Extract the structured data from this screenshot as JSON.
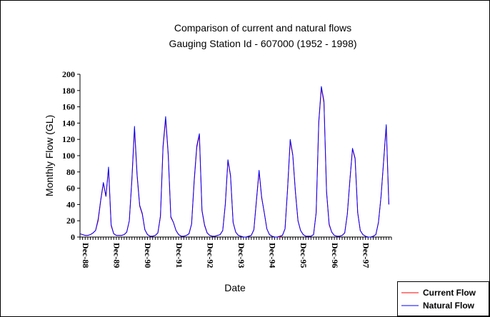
{
  "chart_data": {
    "type": "line",
    "title": "Comparison of current and natural flows",
    "subtitle": "Gauging Station Id - 607000 (1952 - 1998)",
    "xlabel": "Date",
    "ylabel": "Monthly Flow (GL)",
    "ylim": [
      0,
      200
    ],
    "yticks": [
      "0",
      "20",
      "40",
      "60",
      "80",
      "100",
      "120",
      "140",
      "160",
      "180",
      "200"
    ],
    "xlim": [
      "Dec-88",
      "Dec-98"
    ],
    "xticks": [
      "Dec-88",
      "Dec-89",
      "Dec-90",
      "Dec-91",
      "Dec-92",
      "Dec-93",
      "Dec-94",
      "Dec-95",
      "Dec-96",
      "Dec-97"
    ],
    "grid": false,
    "legend": "bottom-right",
    "x": [
      "Dec-88",
      "Jan-89",
      "Feb-89",
      "Mar-89",
      "Apr-89",
      "May-89",
      "Jun-89",
      "Jul-89",
      "Aug-89",
      "Sep-89",
      "Oct-89",
      "Nov-89",
      "Dec-89",
      "Jan-90",
      "Feb-90",
      "Mar-90",
      "Apr-90",
      "May-90",
      "Jun-90",
      "Jul-90",
      "Aug-90",
      "Sep-90",
      "Oct-90",
      "Nov-90",
      "Dec-90",
      "Jan-91",
      "Feb-91",
      "Mar-91",
      "Apr-91",
      "May-91",
      "Jun-91",
      "Jul-91",
      "Aug-91",
      "Sep-91",
      "Oct-91",
      "Nov-91",
      "Dec-91",
      "Jan-92",
      "Feb-92",
      "Mar-92",
      "Apr-92",
      "May-92",
      "Jun-92",
      "Jul-92",
      "Aug-92",
      "Sep-92",
      "Oct-92",
      "Nov-92",
      "Dec-92",
      "Jan-93",
      "Feb-93",
      "Mar-93",
      "Apr-93",
      "May-93",
      "Jun-93",
      "Jul-93",
      "Aug-93",
      "Sep-93",
      "Oct-93",
      "Nov-93",
      "Dec-93",
      "Jan-94",
      "Feb-94",
      "Mar-94",
      "Apr-94",
      "May-94",
      "Jun-94",
      "Jul-94",
      "Aug-94",
      "Sep-94",
      "Oct-94",
      "Nov-94",
      "Dec-94",
      "Jan-95",
      "Feb-95",
      "Mar-95",
      "Apr-95",
      "May-95",
      "Jun-95",
      "Jul-95",
      "Aug-95",
      "Sep-95",
      "Oct-95",
      "Nov-95",
      "Dec-95",
      "Jan-96",
      "Feb-96",
      "Mar-96",
      "Apr-96",
      "May-96",
      "Jun-96",
      "Jul-96",
      "Aug-96",
      "Sep-96",
      "Oct-96",
      "Nov-96",
      "Dec-96",
      "Jan-97",
      "Feb-97",
      "Mar-97",
      "Apr-97",
      "May-97",
      "Jun-97",
      "Jul-97",
      "Aug-97",
      "Sep-97",
      "Oct-97",
      "Nov-97",
      "Dec-97",
      "Jan-98",
      "Feb-98",
      "Mar-98",
      "Apr-98",
      "May-98",
      "Jun-98",
      "Jul-98",
      "Aug-98",
      "Sep-98",
      "Oct-98",
      "Nov-98"
    ],
    "series": [
      {
        "name": "Current Flow",
        "color": "#ff0000",
        "values": [
          4,
          3,
          2,
          2,
          3,
          5,
          8,
          20,
          45,
          66,
          50,
          84,
          14,
          4,
          2,
          2,
          2,
          3,
          6,
          20,
          70,
          133,
          75,
          38,
          28,
          9,
          3,
          1,
          1,
          2,
          5,
          25,
          110,
          145,
          100,
          24,
          18,
          8,
          3,
          1,
          1,
          2,
          4,
          16,
          68,
          110,
          125,
          32,
          14,
          5,
          2,
          1,
          1,
          2,
          3,
          8,
          40,
          94,
          75,
          18,
          6,
          2,
          1,
          0,
          0,
          1,
          2,
          9,
          45,
          80,
          48,
          30,
          10,
          3,
          1,
          0,
          0,
          0,
          2,
          10,
          60,
          118,
          100,
          55,
          20,
          8,
          3,
          1,
          1,
          1,
          3,
          30,
          140,
          183,
          165,
          55,
          15,
          6,
          2,
          1,
          1,
          2,
          5,
          28,
          70,
          108,
          96,
          30,
          8,
          3,
          1,
          0,
          0,
          1,
          3,
          18,
          50,
          93,
          136,
          40
        ]
      },
      {
        "name": "Natural Flow",
        "color": "#0000ff",
        "values": [
          4,
          3,
          2,
          2,
          3,
          5,
          8,
          22,
          46,
          67,
          50,
          86,
          15,
          4,
          2,
          2,
          2,
          3,
          6,
          20,
          72,
          136,
          77,
          39,
          29,
          9,
          3,
          1,
          1,
          2,
          5,
          26,
          112,
          148,
          102,
          25,
          18,
          8,
          3,
          1,
          1,
          2,
          4,
          16,
          70,
          112,
          127,
          33,
          15,
          5,
          2,
          1,
          1,
          2,
          3,
          8,
          41,
          95,
          76,
          18,
          6,
          2,
          1,
          0,
          0,
          1,
          2,
          9,
          46,
          82,
          49,
          30,
          10,
          3,
          1,
          0,
          0,
          1,
          2,
          10,
          60,
          120,
          101,
          56,
          20,
          8,
          3,
          1,
          1,
          1,
          3,
          30,
          142,
          185,
          167,
          56,
          16,
          6,
          2,
          1,
          1,
          2,
          5,
          28,
          70,
          109,
          97,
          30,
          8,
          3,
          1,
          0,
          0,
          1,
          3,
          18,
          50,
          94,
          138,
          40
        ]
      }
    ]
  }
}
